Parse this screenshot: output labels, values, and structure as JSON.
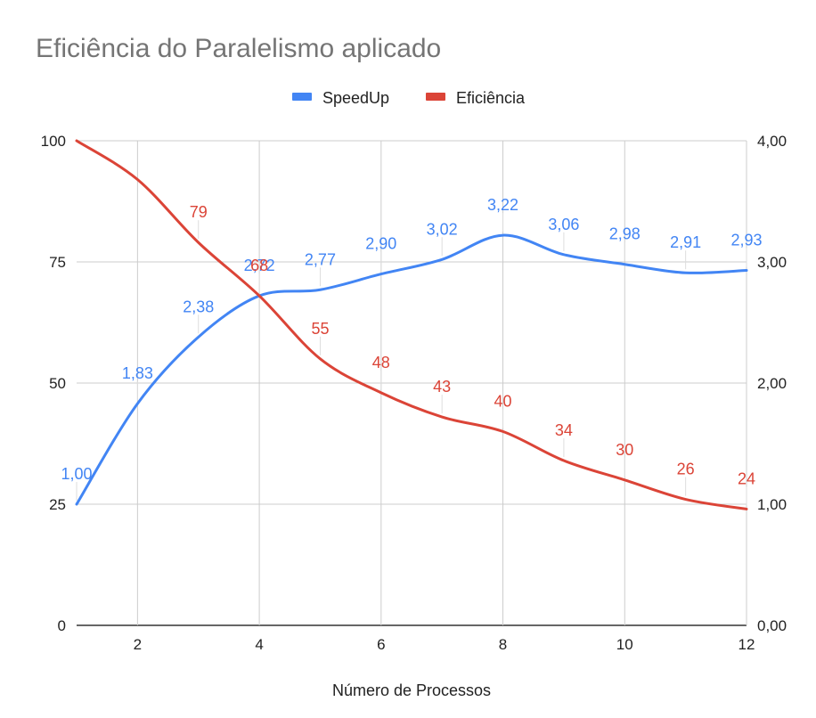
{
  "chart_data": {
    "type": "line",
    "title": "Eficiência do Paralelismo aplicado",
    "xlabel": "Número de Processos",
    "ylabel_left": "",
    "ylabel_right": "",
    "x": [
      1,
      2,
      3,
      4,
      5,
      6,
      7,
      8,
      9,
      10,
      11,
      12
    ],
    "x_ticks": [
      "2",
      "4",
      "6",
      "8",
      "10",
      "12"
    ],
    "xlim": [
      1,
      12
    ],
    "y_left_ticks": [
      "0",
      "25",
      "50",
      "75",
      "100"
    ],
    "ylim_left": [
      0,
      100
    ],
    "y_right_ticks": [
      "0,00",
      "1,00",
      "2,00",
      "3,00",
      "4,00"
    ],
    "ylim_right": [
      0,
      4
    ],
    "grid": true,
    "legend_position": "top",
    "smooth": true,
    "series": [
      {
        "name": "SpeedUp",
        "axis": "right",
        "color": "#4285f4",
        "values": [
          1.0,
          1.83,
          2.38,
          2.72,
          2.77,
          2.9,
          3.02,
          3.22,
          3.06,
          2.98,
          2.91,
          2.93
        ],
        "labels": [
          "1,00",
          "1,83",
          "2,38",
          "2,72",
          "2,77",
          "2,90",
          "3,02",
          "3,22",
          "3,06",
          "2,98",
          "2,91",
          "2,93"
        ]
      },
      {
        "name": "Eficiência",
        "axis": "left",
        "color": "#db4437",
        "values": [
          100,
          92,
          79,
          68,
          55,
          48,
          43,
          40,
          34,
          30,
          26,
          24
        ],
        "labels": [
          "",
          "",
          "79",
          "68",
          "55",
          "48",
          "43",
          "40",
          "34",
          "30",
          "26",
          "24"
        ]
      }
    ]
  }
}
